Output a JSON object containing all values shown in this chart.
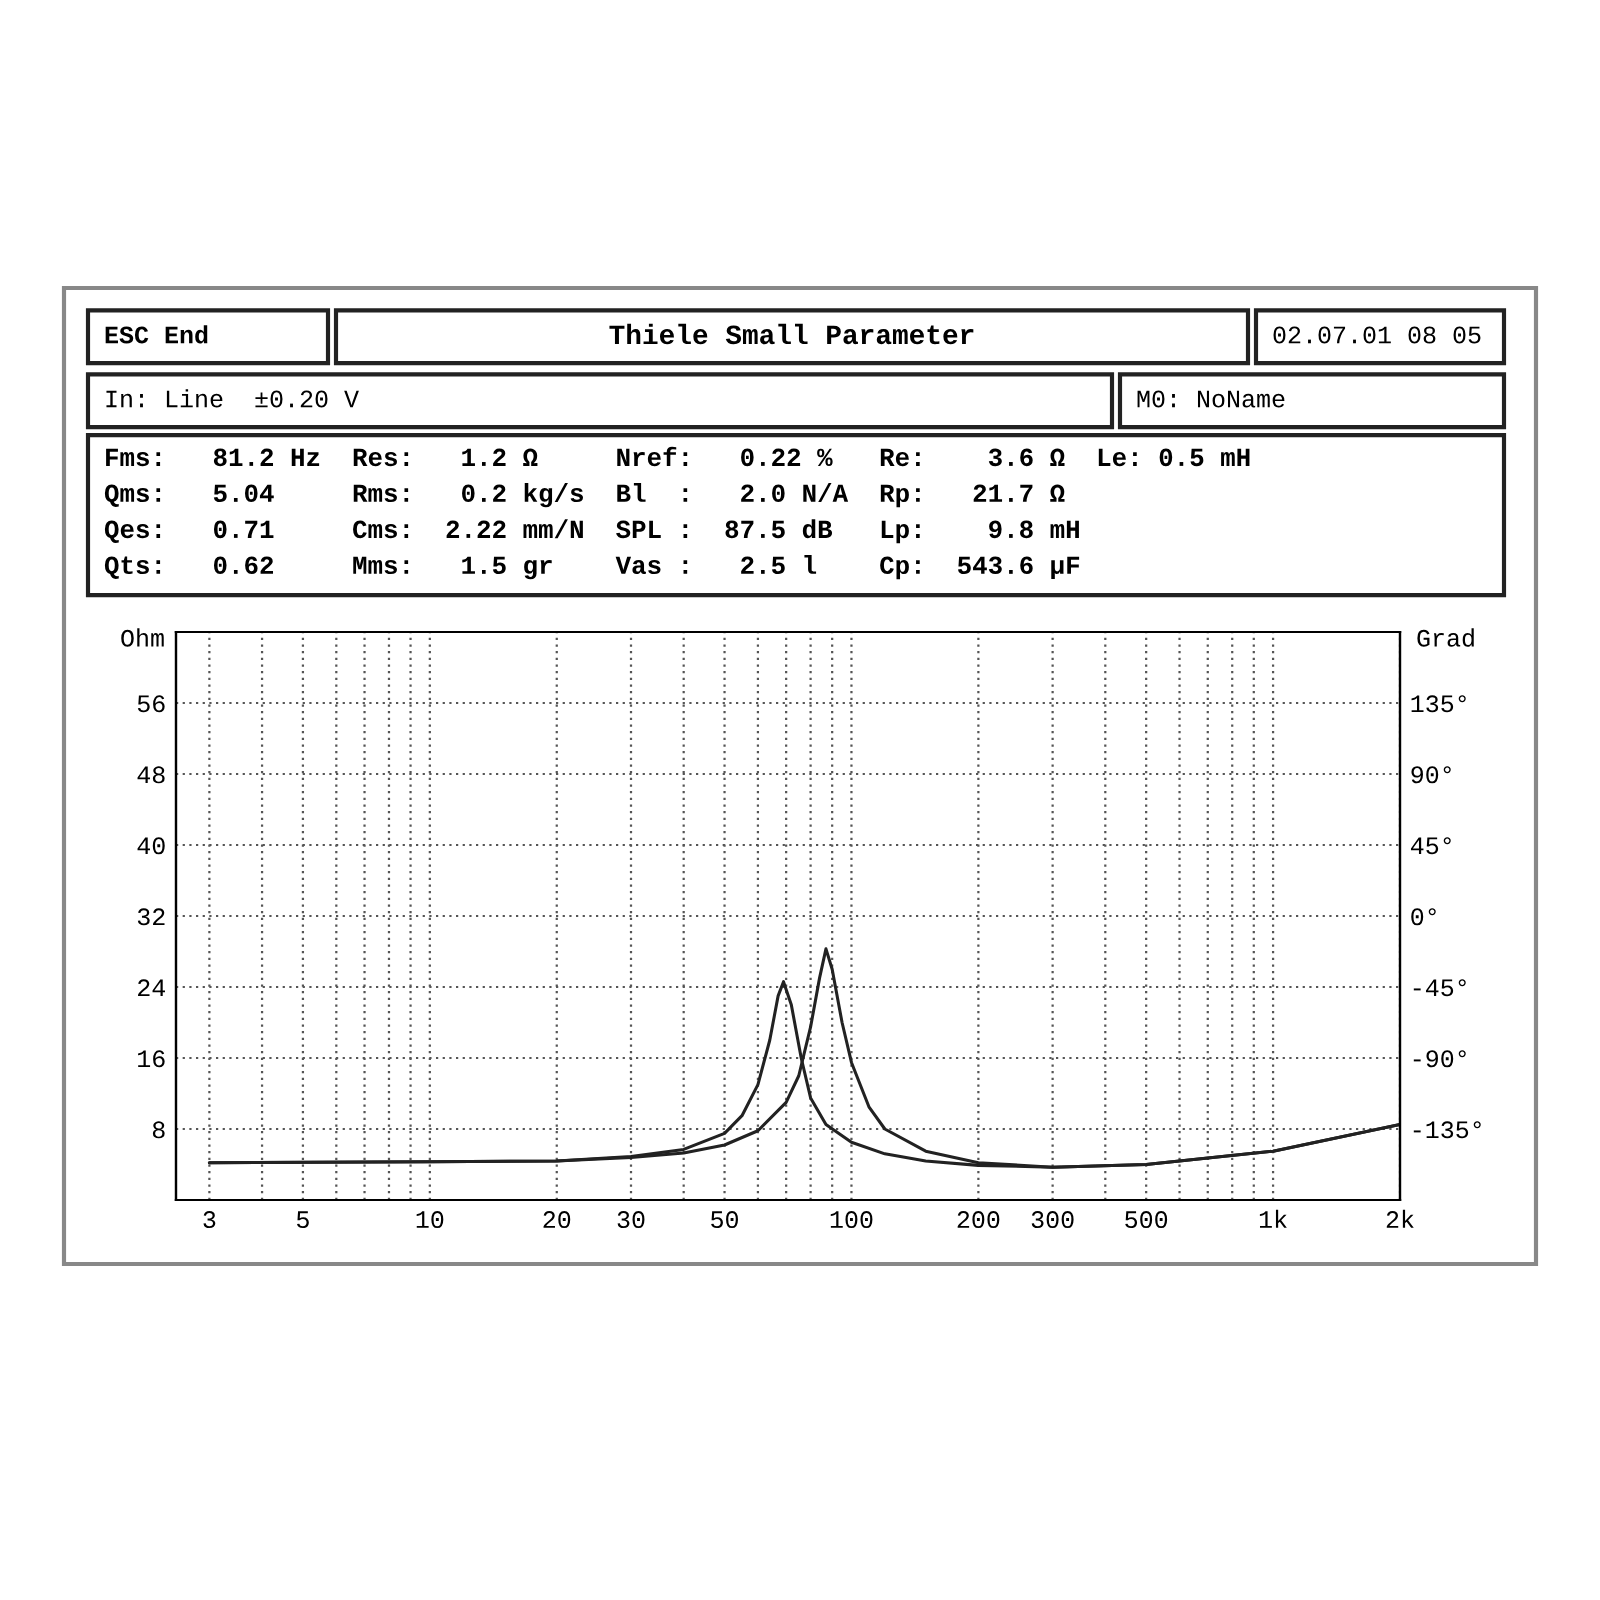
{
  "chart_data": {
    "type": "line",
    "title": "Thiele Small Parameter",
    "ylabel": "Ohm",
    "y2label": "Grad",
    "annotations": [
      "ESC End",
      "02.07.01 08 05",
      "In: Line  ±0.20 V",
      "M0: NoName",
      "Fms:   81.2 Hz  Res:   1.2 Ω     Nref:   0.22 %   Re:    3.6 Ω  Le: 0.5 mH",
      "Qms:   5.04     Rms:   0.2 kg/s  Bl  :   2.0 N/A  Rp:   21.7 Ω",
      "Qes:   0.71     Cms:  2.22 mm/N  SPL :  87.5 dB   Lp:    9.8 mH",
      "Qts:   0.62     Mms:   1.5 gr    Vas :   2.5 l    Cp:  543.6 µF"
    ],
    "log": "x",
    "grid": true,
    "line_style": "solid",
    "marker": "none",
    "xlim": [
      2.5,
      2000
    ],
    "ylim": [
      0,
      64
    ],
    "y2lim": [
      -180,
      180
    ],
    "xticks": [
      3,
      {
        "value": 4,
        "label": null
      },
      5,
      {
        "value": 6,
        "label": null
      },
      {
        "value": 7,
        "label": null
      },
      {
        "value": 8,
        "label": null
      },
      {
        "value": 9,
        "label": null
      },
      10,
      20,
      30,
      {
        "value": 40,
        "label": null
      },
      50,
      {
        "value": 60,
        "label": null
      },
      {
        "value": 70,
        "label": null
      },
      {
        "value": 80,
        "label": null
      },
      {
        "value": 90,
        "label": null
      },
      100,
      200,
      300,
      {
        "value": 400,
        "label": null
      },
      500,
      {
        "value": 600,
        "label": null
      },
      {
        "value": 700,
        "label": null
      },
      {
        "value": 800,
        "label": null
      },
      {
        "value": 900,
        "label": null
      },
      {
        "value": 1000,
        "label": "1k"
      },
      {
        "value": 2000,
        "label": "2k"
      }
    ],
    "yticks": [
      {
        "value": 8,
        "label": "8"
      },
      16,
      24,
      32,
      40,
      48,
      56
    ],
    "y2ticks": [
      {
        "value": -135,
        "label": "-135°"
      },
      {
        "value": -90,
        "label": "-90°"
      },
      {
        "value": -45,
        "label": "-45°"
      },
      {
        "value": 0,
        "label": "0°"
      },
      {
        "value": 45,
        "label": "45°"
      },
      {
        "value": 90,
        "label": "90°"
      },
      {
        "value": 135,
        "label": "135°"
      }
    ],
    "series": [
      {
        "color": "#222222",
        "x": [
          3,
          10,
          20,
          30,
          40,
          50,
          55,
          60,
          64,
          67,
          69,
          72,
          76,
          80,
          87,
          100,
          120,
          150,
          200,
          300,
          500,
          1000,
          2000
        ],
        "values": [
          4.2,
          4.3,
          4.4,
          4.9,
          5.7,
          7.5,
          9.5,
          13,
          18,
          23,
          24.6,
          22,
          16,
          11.5,
          8.5,
          6.5,
          5.2,
          4.4,
          3.9,
          3.7,
          4.0,
          5.5,
          8.5
        ]
      },
      {
        "color": "#222222",
        "x": [
          3,
          10,
          20,
          30,
          40,
          50,
          60,
          70,
          75,
          80,
          84,
          87,
          90,
          95,
          100,
          110,
          120,
          150,
          200,
          300,
          500,
          1000,
          2000
        ],
        "values": [
          4.2,
          4.3,
          4.4,
          4.8,
          5.3,
          6.2,
          7.8,
          11,
          14,
          19.5,
          25,
          28.3,
          26,
          20,
          15.5,
          10.5,
          8,
          5.5,
          4.2,
          3.7,
          4.0,
          5.5,
          8.5
        ]
      }
    ]
  }
}
